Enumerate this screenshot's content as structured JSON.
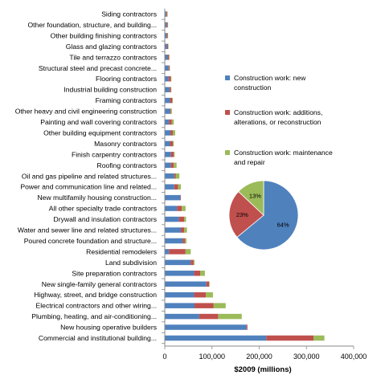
{
  "chart_data": [
    {
      "type": "bar",
      "orientation": "horizontal",
      "stacked": true,
      "categories": [
        "Commercial and institutional  building...",
        "New housing operative builders",
        "Plumbing, heating, and air-conditioning...",
        "Electrical contractors and other wiring...",
        "Highway, street, and bridge construction",
        "New single-family general contractors",
        "Site preparation contractors",
        "Land subdivision",
        "Residential remodelers",
        "Poured concrete foundation and structure...",
        "Water and sewer line and related structures...",
        "Drywall and insulation contractors",
        "All other specialty trade contractors",
        "New multifamily housing construction...",
        "Power and communication  line and related...",
        "Oil and gas pipeline and related structures...",
        "Roofing contractors",
        "Finish carpentry contractors",
        "Masonry contractors",
        "Other building equipment contractors",
        "Painting and wall covering contractors",
        "Other heavy and civil engineering construction",
        "Framing contractors",
        "Industrial building construction",
        "Flooring contractors",
        "Structural steel and precast concrete...",
        "Tile and terrazzo contractors",
        "Glass and glazing contractors",
        "Other building finishing contractors",
        "Other foundation, structure, and building...",
        "Siding contractors"
      ],
      "series": [
        {
          "name": "Construction work: new construction",
          "color": "#4f81bd",
          "values": [
            215000,
            173000,
            73000,
            63000,
            62000,
            88000,
            62000,
            55000,
            9000,
            38000,
            34000,
            30000,
            26000,
            33000,
            20000,
            20000,
            13000,
            13000,
            11000,
            12000,
            9000,
            11000,
            11000,
            10000,
            8000,
            8000,
            6000,
            5000,
            4000,
            4000,
            3000
          ]
        },
        {
          "name": "Construction work: additions, alterations, or reconstruction",
          "color": "#c0504d",
          "values": [
            100000,
            2000,
            40000,
            40000,
            25000,
            6000,
            13000,
            6000,
            35000,
            5000,
            7000,
            11000,
            10000,
            1000,
            8000,
            3000,
            6000,
            6000,
            6000,
            5000,
            6000,
            2000,
            5000,
            3000,
            5000,
            2000,
            3000,
            2000,
            2000,
            2000,
            2000
          ]
        },
        {
          "name": "Construction work: maintenance and repair",
          "color": "#9bbb59",
          "values": [
            23000,
            0,
            50000,
            26000,
            15000,
            1000,
            10000,
            2000,
            11000,
            3000,
            6000,
            4000,
            8000,
            0,
            6000,
            8000,
            6000,
            2000,
            2000,
            5000,
            4000,
            2000,
            1000,
            1000,
            1000,
            1000,
            1000,
            1000,
            1000,
            1000,
            1000
          ]
        }
      ],
      "xlabel": "$2009 (millions)",
      "xlim": [
        0,
        400000
      ],
      "xticks": [
        "0",
        "100,000",
        "200,000",
        "300,000",
        "400,000"
      ],
      "grid": false,
      "legend_placement": "right"
    },
    {
      "type": "pie",
      "slices": [
        {
          "name": "Construction work: new construction",
          "value": 64,
          "label": "64%",
          "color": "#4f81bd"
        },
        {
          "name": "Construction work: additions, alterations, or reconstruction",
          "value": 23,
          "label": "23%",
          "color": "#c0504d"
        },
        {
          "name": "Construction work: maintenance and repair",
          "value": 13,
          "label": "13%",
          "color": "#9bbb59"
        }
      ]
    }
  ],
  "legend": {
    "items": [
      {
        "lines": [
          "Construction work: new",
          "construction"
        ],
        "color": "#4f81bd"
      },
      {
        "lines": [
          "Construction work: additions,",
          "alterations, or reconstruction"
        ],
        "color": "#c0504d"
      },
      {
        "lines": [
          "Construction work: maintenance",
          "and repair"
        ],
        "color": "#9bbb59"
      }
    ]
  }
}
